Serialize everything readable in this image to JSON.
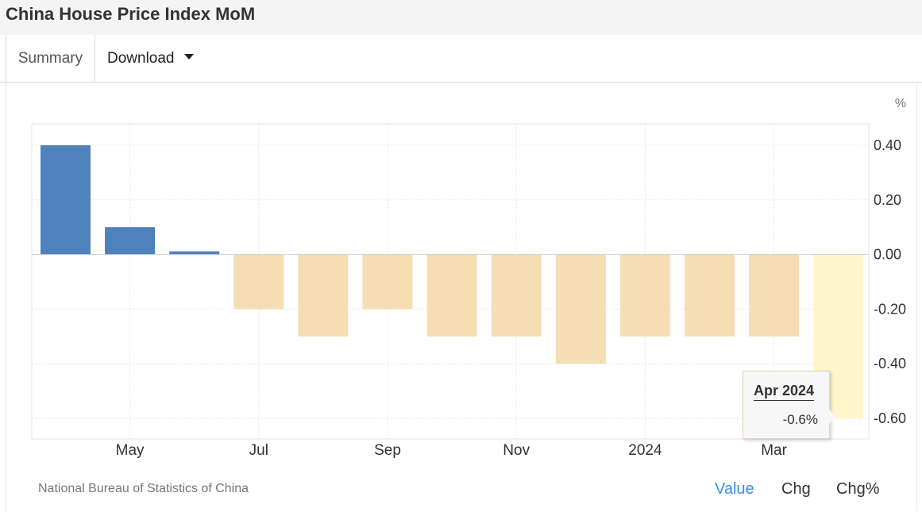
{
  "page_title": "China House Price Index MoM",
  "tabs": {
    "summary": "Summary",
    "download": "Download"
  },
  "source": "National Bureau of Statistics of China",
  "modes": {
    "value": "Value",
    "chg": "Chg",
    "chg_pct": "Chg%"
  },
  "tooltip": {
    "period": "Apr 2024",
    "value": "-0.6%"
  },
  "colors": {
    "positive": "#4f81bd",
    "negative": "#f5deb3",
    "highlight": "#fff6cc",
    "active_mode": "#3a8ee6"
  },
  "chart_data": {
    "type": "bar",
    "unit_label": "%",
    "categories": [
      "Apr 2023",
      "May 2023",
      "Jun 2023",
      "Jul 2023",
      "Aug 2023",
      "Sep 2023",
      "Oct 2023",
      "Nov 2023",
      "Dec 2023",
      "Jan 2024",
      "Feb 2024",
      "Mar 2024",
      "Apr 2024"
    ],
    "values": [
      0.4,
      0.1,
      0.0,
      -0.2,
      -0.3,
      -0.2,
      -0.3,
      -0.3,
      -0.4,
      -0.3,
      -0.3,
      -0.3,
      -0.6
    ],
    "x_tick_labels": [
      {
        "label": "May",
        "index": 1
      },
      {
        "label": "Jul",
        "index": 3
      },
      {
        "label": "Sep",
        "index": 5
      },
      {
        "label": "Nov",
        "index": 7
      },
      {
        "label": "2024",
        "index": 9
      },
      {
        "label": "Mar",
        "index": 11
      }
    ],
    "y_ticks": [
      "0.40",
      "0.20",
      "0.00",
      "-0.20",
      "-0.40",
      "-0.60"
    ],
    "ylim": [
      -0.6,
      0.4
    ],
    "grid": true,
    "y_axis_side": "right",
    "highlighted_index": 12
  }
}
